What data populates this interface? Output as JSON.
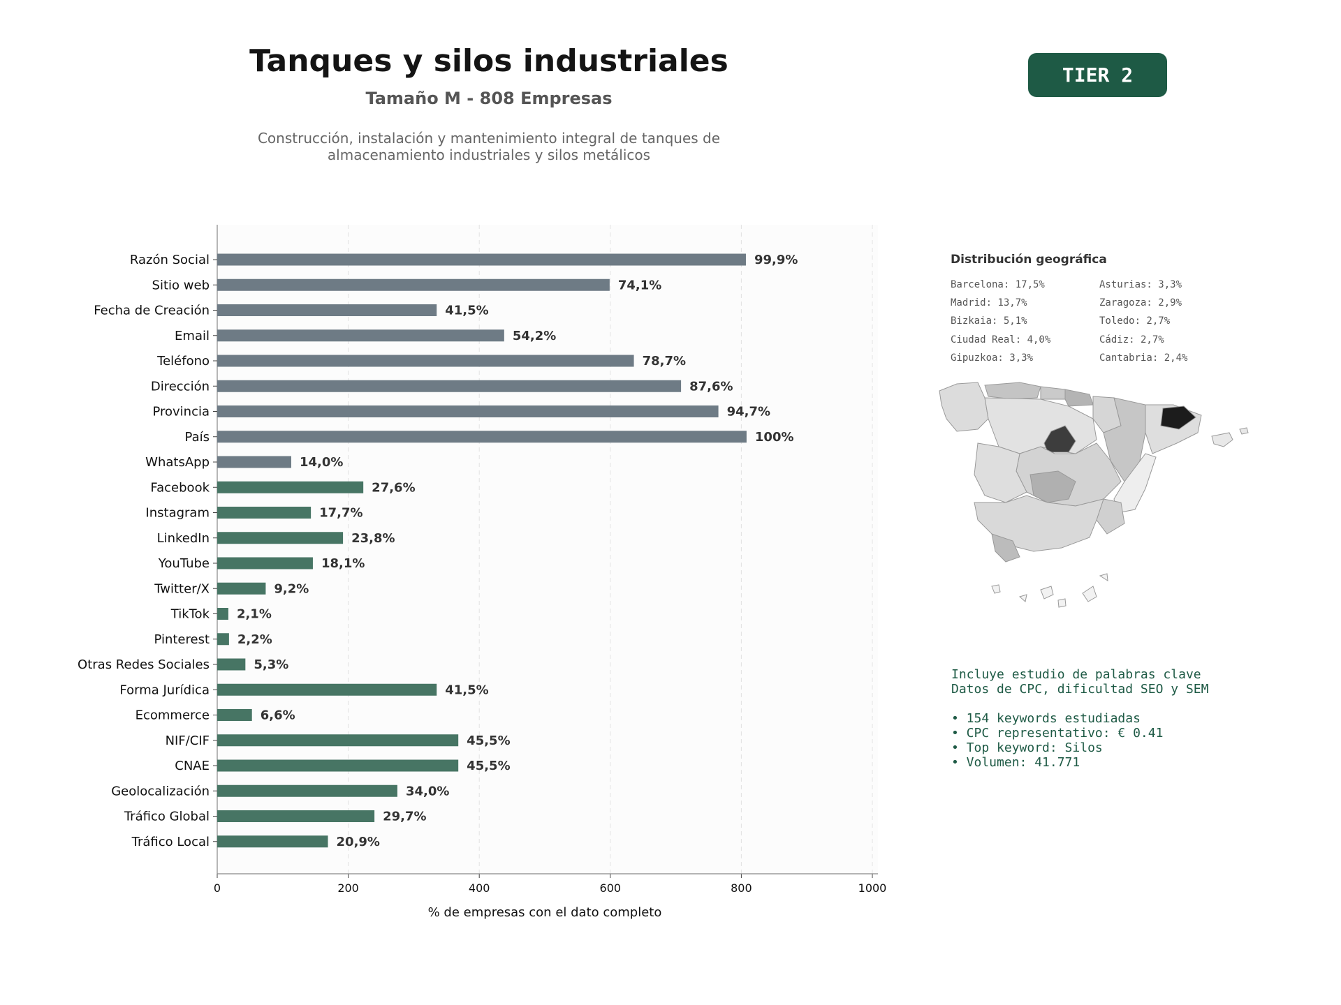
{
  "header": {
    "title": "Tanques y silos industriales",
    "subtitle": "Tamaño M - 808 Empresas",
    "description_line1": "Construcción, instalación y mantenimiento integral de tanques de",
    "description_line2": "almacenamiento industriales y silos metálicos",
    "tier": "TIER 2"
  },
  "chart_data": {
    "type": "bar",
    "orientation": "horizontal",
    "xlabel": "% de empresas con el dato completo",
    "ylabel": "",
    "xlim": [
      0,
      1000
    ],
    "xticks": [
      "0",
      "200",
      "400",
      "600",
      "800",
      "1000"
    ],
    "grid": "vertical dashed",
    "colors": {
      "basic": "#6e7b85",
      "extended": "#477564"
    },
    "categories": [
      "Razón Social",
      "Sitio web",
      "Fecha de Creación",
      "Email",
      "Teléfono",
      "Dirección",
      "Provincia",
      "País",
      "WhatsApp",
      "Facebook",
      "Instagram",
      "LinkedIn",
      "YouTube",
      "Twitter/X",
      "TikTok",
      "Pinterest",
      "Otras Redes Sociales",
      "Forma Jurídica",
      "Ecommerce",
      "NIF/CIF",
      "CNAE",
      "Geolocalización",
      "Tráfico Global",
      "Tráfico Local"
    ],
    "values": [
      807,
      599,
      335,
      438,
      636,
      708,
      765,
      808,
      113,
      223,
      143,
      192,
      146,
      74,
      17,
      18,
      43,
      335,
      53,
      368,
      368,
      275,
      240,
      169
    ],
    "labels": [
      "99,9%",
      "74,1%",
      "41,5%",
      "54,2%",
      "78,7%",
      "87,6%",
      "94,7%",
      "100%",
      "14,0%",
      "27,6%",
      "17,7%",
      "23,8%",
      "18,1%",
      "9,2%",
      "2,1%",
      "2,2%",
      "5,3%",
      "41,5%",
      "6,6%",
      "45,5%",
      "45,5%",
      "34,0%",
      "29,7%",
      "20,9%"
    ],
    "group": [
      "basic",
      "basic",
      "basic",
      "basic",
      "basic",
      "basic",
      "basic",
      "basic",
      "basic",
      "extended",
      "extended",
      "extended",
      "extended",
      "extended",
      "extended",
      "extended",
      "extended",
      "extended",
      "extended",
      "extended",
      "extended",
      "extended",
      "extended",
      "extended"
    ]
  },
  "geo": {
    "title": "Distribución geográfica",
    "col1": [
      "Barcelona: 17,5%",
      "Madrid: 13,7%",
      "Bizkaia: 5,1%",
      "Ciudad Real: 4,0%",
      "Gipuzkoa: 3,3%"
    ],
    "col2": [
      "Asturias: 3,3%",
      "Zaragoza: 2,9%",
      "Toledo: 2,7%",
      "Cádiz: 2,7%",
      "Cantabria: 2,4%"
    ]
  },
  "keywords": {
    "line1": "Incluye estudio de palabras clave",
    "line2": "Datos de CPC, dificultad SEO y SEM",
    "bullets": [
      "• 154 keywords estudiadas",
      "• CPC representativo: € 0.41",
      "• Top keyword: Silos",
      "• Volumen: 41.771"
    ]
  }
}
